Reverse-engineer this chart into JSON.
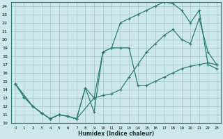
{
  "xlabel": "Humidex (Indice chaleur)",
  "bg_color": "#cce8ea",
  "grid_color": "#aacfd2",
  "line_color": "#2d7d78",
  "xlim": [
    -0.5,
    23.5
  ],
  "ylim": [
    10,
    24.5
  ],
  "yticks": [
    10,
    11,
    12,
    13,
    14,
    15,
    16,
    17,
    18,
    19,
    20,
    21,
    22,
    23,
    24
  ],
  "xticks": [
    0,
    1,
    2,
    3,
    4,
    5,
    6,
    7,
    8,
    9,
    10,
    11,
    12,
    13,
    14,
    15,
    16,
    17,
    18,
    19,
    20,
    21,
    22,
    23
  ],
  "line1_x": [
    0,
    1,
    2,
    3,
    4,
    5,
    6,
    7,
    8,
    9,
    10,
    11,
    12,
    13,
    14,
    15,
    16,
    17,
    18,
    19,
    20,
    21,
    22,
    23
  ],
  "line1_y": [
    14.7,
    13.1,
    12.0,
    11.2,
    10.5,
    11.0,
    10.8,
    10.5,
    14.2,
    11.3,
    18.5,
    19.0,
    19.0,
    19.0,
    14.5,
    14.5,
    15.0,
    15.5,
    16.0,
    16.5,
    16.8,
    17.0,
    17.2,
    17.0
  ],
  "line2_x": [
    0,
    1,
    2,
    3,
    4,
    5,
    6,
    7,
    8,
    9,
    10,
    11,
    12,
    13,
    14,
    15,
    16,
    17,
    18,
    19,
    20,
    21,
    22,
    23
  ],
  "line2_y": [
    14.7,
    13.1,
    12.0,
    11.2,
    10.5,
    11.0,
    10.8,
    10.5,
    14.2,
    13.0,
    18.5,
    19.0,
    22.0,
    22.5,
    23.0,
    23.5,
    24.0,
    24.5,
    24.3,
    23.5,
    22.0,
    23.5,
    17.0,
    16.5
  ],
  "line3_x": [
    0,
    2,
    3,
    4,
    5,
    6,
    7,
    9,
    10,
    11,
    12,
    13,
    14,
    15,
    16,
    17,
    18,
    19,
    20,
    21,
    22,
    23
  ],
  "line3_y": [
    14.7,
    12.0,
    11.2,
    10.5,
    11.0,
    10.8,
    10.5,
    13.0,
    13.3,
    13.5,
    14.0,
    15.5,
    17.0,
    18.5,
    19.5,
    20.5,
    21.2,
    20.0,
    19.5,
    22.5,
    18.5,
    17.0
  ]
}
